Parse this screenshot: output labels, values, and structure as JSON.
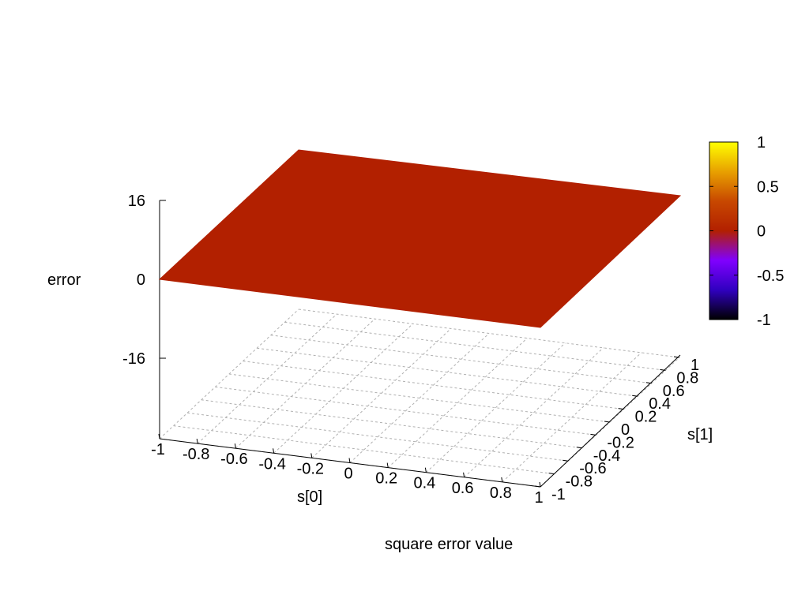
{
  "chart_data": {
    "type": "surface3d",
    "title": "",
    "xlabel": "s[0]",
    "ylabel": "s[1]",
    "zlabel": "error",
    "footer_label": "square error value",
    "x_ticks": [
      "-1",
      "-0.8",
      "-0.6",
      "-0.4",
      "-0.2",
      "0",
      "0.2",
      "0.4",
      "0.6",
      "0.8",
      "1"
    ],
    "y_ticks": [
      "-1",
      "-0.8",
      "-0.6",
      "-0.4",
      "-0.2",
      "0",
      "0.2",
      "0.4",
      "0.6",
      "0.8",
      "1"
    ],
    "y_ticks_shown": [
      "-1",
      "-0.8",
      "-0.6",
      "-0.4",
      "-0.2",
      "0",
      "0.2",
      "0.4",
      "0.6",
      "0.8",
      "1"
    ],
    "z_ticks": [
      "-16",
      "0",
      "16"
    ],
    "xlim": [
      -1,
      1
    ],
    "ylim": [
      -1,
      1
    ],
    "zlim": [
      -16,
      16
    ],
    "surface": {
      "z_value": 0,
      "color": "#b22000"
    },
    "grid": true,
    "colorbar": {
      "ticks": [
        "1",
        "0.5",
        "0",
        "-0.5",
        "-1"
      ],
      "range": [
        -1,
        1
      ],
      "stops": [
        "#000000",
        "#3000c0",
        "#8000ff",
        "#b22000",
        "#c84800",
        "#e8a000",
        "#ffff00"
      ]
    }
  }
}
